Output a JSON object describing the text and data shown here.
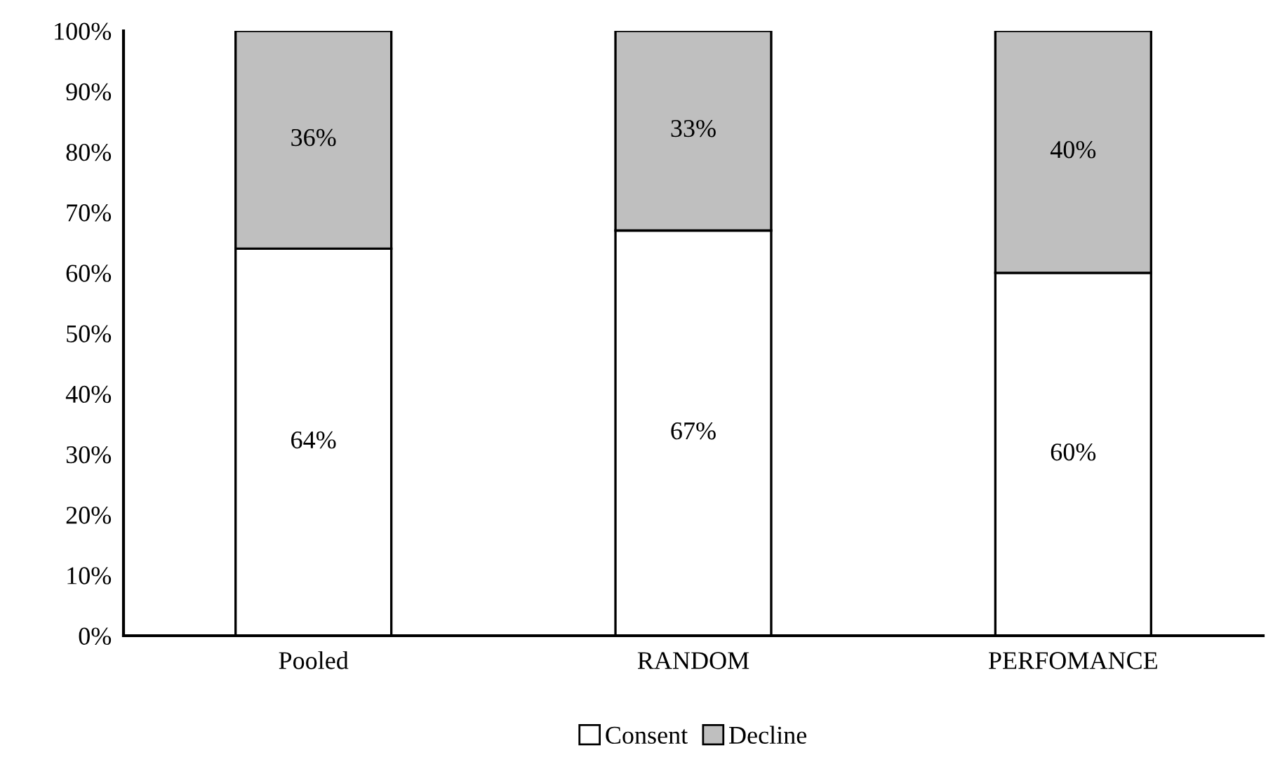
{
  "chart_data": {
    "type": "bar",
    "stacked": true,
    "categories": [
      "Pooled",
      "RANDOM",
      "PERFOMANCE"
    ],
    "series": [
      {
        "name": "Consent",
        "color": "#ffffff",
        "values": [
          64,
          67,
          60
        ],
        "value_labels": [
          "64%",
          "67%",
          "60%"
        ]
      },
      {
        "name": "Decline",
        "color": "#bfbfbf",
        "values": [
          36,
          33,
          40
        ],
        "value_labels": [
          "36%",
          "33%",
          "40%"
        ]
      }
    ],
    "ylim": [
      0,
      100
    ],
    "yticks": [
      {
        "value": 0,
        "label": "0%"
      },
      {
        "value": 10,
        "label": "10%"
      },
      {
        "value": 20,
        "label": "20%"
      },
      {
        "value": 30,
        "label": "30%"
      },
      {
        "value": 40,
        "label": "40%"
      },
      {
        "value": 50,
        "label": "50%"
      },
      {
        "value": 60,
        "label": "60%"
      },
      {
        "value": 70,
        "label": "70%"
      },
      {
        "value": 80,
        "label": "80%"
      },
      {
        "value": 90,
        "label": "90%"
      },
      {
        "value": 100,
        "label": "100%"
      }
    ],
    "grid": false,
    "legend": "bottom"
  }
}
